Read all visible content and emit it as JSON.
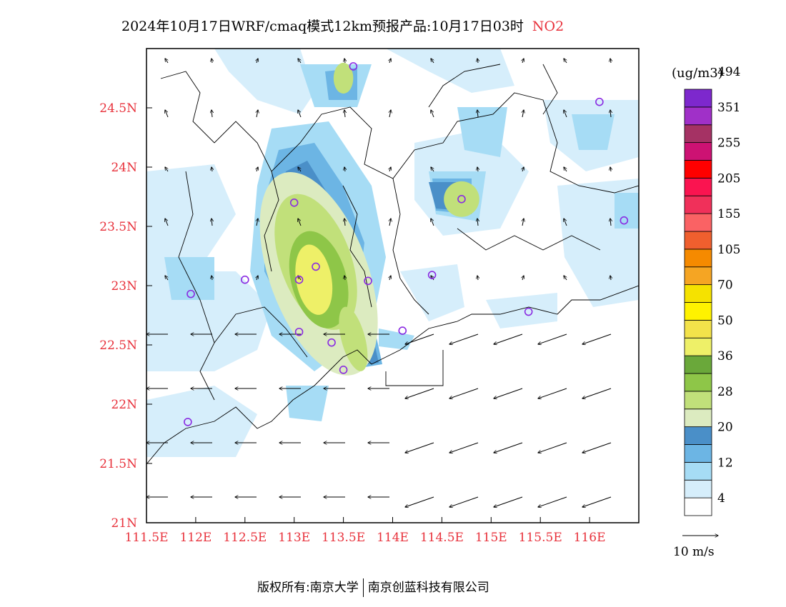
{
  "title": "2024年10月17日WRF/cmaq模式12km预报产品:10月17日03时",
  "pollutant": "NO2",
  "units": "(ug/m3)",
  "footer": {
    "left": "版权所有:南京大学",
    "right": "南京创蓝科技有限公司"
  },
  "wind_legend": "10 m/s",
  "axes": {
    "lon_ticks": [
      "111.5E",
      "112E",
      "112.5E",
      "113E",
      "113.5E",
      "114E",
      "114.5E",
      "115E",
      "115.5E",
      "116E"
    ],
    "lat_ticks": [
      "21N",
      "21.5N",
      "22N",
      "22.5N",
      "23N",
      "23.5N",
      "24N",
      "24.5N"
    ],
    "lon_range": [
      111.5,
      116.5
    ],
    "lat_range": [
      21,
      25
    ]
  },
  "colorbar": {
    "colors": [
      "#ffffff",
      "#d6eefb",
      "#a6dcf5",
      "#6cb5e4",
      "#4a8fc8",
      "#dcebc0",
      "#c1e07a",
      "#8ec648",
      "#6aa83a",
      "#eef068",
      "#f3e24a",
      "#fff200",
      "#f5e200",
      "#f5a523",
      "#f58a00",
      "#ef5f2e",
      "#fa6264",
      "#f0305a",
      "#fa1450",
      "#ff0000",
      "#cd1273",
      "#a53264",
      "#a030c8",
      "#7d28cd"
    ],
    "labels": [
      "4",
      "12",
      "20",
      "28",
      "36",
      "50",
      "70",
      "105",
      "155",
      "205",
      "255",
      "351",
      "494"
    ]
  },
  "stations": [
    {
      "lon": 113.6,
      "lat": 24.85
    },
    {
      "lon": 116.1,
      "lat": 24.55
    },
    {
      "lon": 114.7,
      "lat": 23.73
    },
    {
      "lon": 116.35,
      "lat": 23.55
    },
    {
      "lon": 113.0,
      "lat": 23.7
    },
    {
      "lon": 112.5,
      "lat": 23.05
    },
    {
      "lon": 111.95,
      "lat": 22.93
    },
    {
      "lon": 113.05,
      "lat": 23.05
    },
    {
      "lon": 113.22,
      "lat": 23.16
    },
    {
      "lon": 113.75,
      "lat": 23.04
    },
    {
      "lon": 114.4,
      "lat": 23.09
    },
    {
      "lon": 113.05,
      "lat": 22.61
    },
    {
      "lon": 113.38,
      "lat": 22.52
    },
    {
      "lon": 113.5,
      "lat": 22.29
    },
    {
      "lon": 114.1,
      "lat": 22.62
    },
    {
      "lon": 115.38,
      "lat": 22.78
    },
    {
      "lon": 111.92,
      "lat": 21.85
    }
  ],
  "hotspots": [
    {
      "lon": 113.25,
      "lat": 23.1,
      "rx": 0.5,
      "ry": 0.9,
      "rot": -20,
      "level": 20
    },
    {
      "lon": 113.22,
      "lat": 23.2,
      "rx": 0.36,
      "ry": 0.6,
      "rot": -20,
      "level": 28
    },
    {
      "lon": 113.18,
      "lat": 23.3,
      "rx": 0.12,
      "ry": 0.35,
      "rot": -10,
      "level": 28
    },
    {
      "lon": 113.25,
      "lat": 23.05,
      "rx": 0.28,
      "ry": 0.42,
      "rot": -15,
      "level": 36
    },
    {
      "lon": 113.2,
      "lat": 23.05,
      "rx": 0.18,
      "ry": 0.3,
      "rot": -10,
      "level": 50
    },
    {
      "lon": 113.6,
      "lat": 22.55,
      "rx": 0.12,
      "ry": 0.28,
      "rot": -15,
      "level": 28
    },
    {
      "lon": 114.7,
      "lat": 23.73,
      "rx": 0.18,
      "ry": 0.15,
      "rot": 0,
      "level": 28
    },
    {
      "lon": 113.5,
      "lat": 24.75,
      "rx": 0.1,
      "ry": 0.13,
      "rot": 0,
      "level": 28
    }
  ]
}
